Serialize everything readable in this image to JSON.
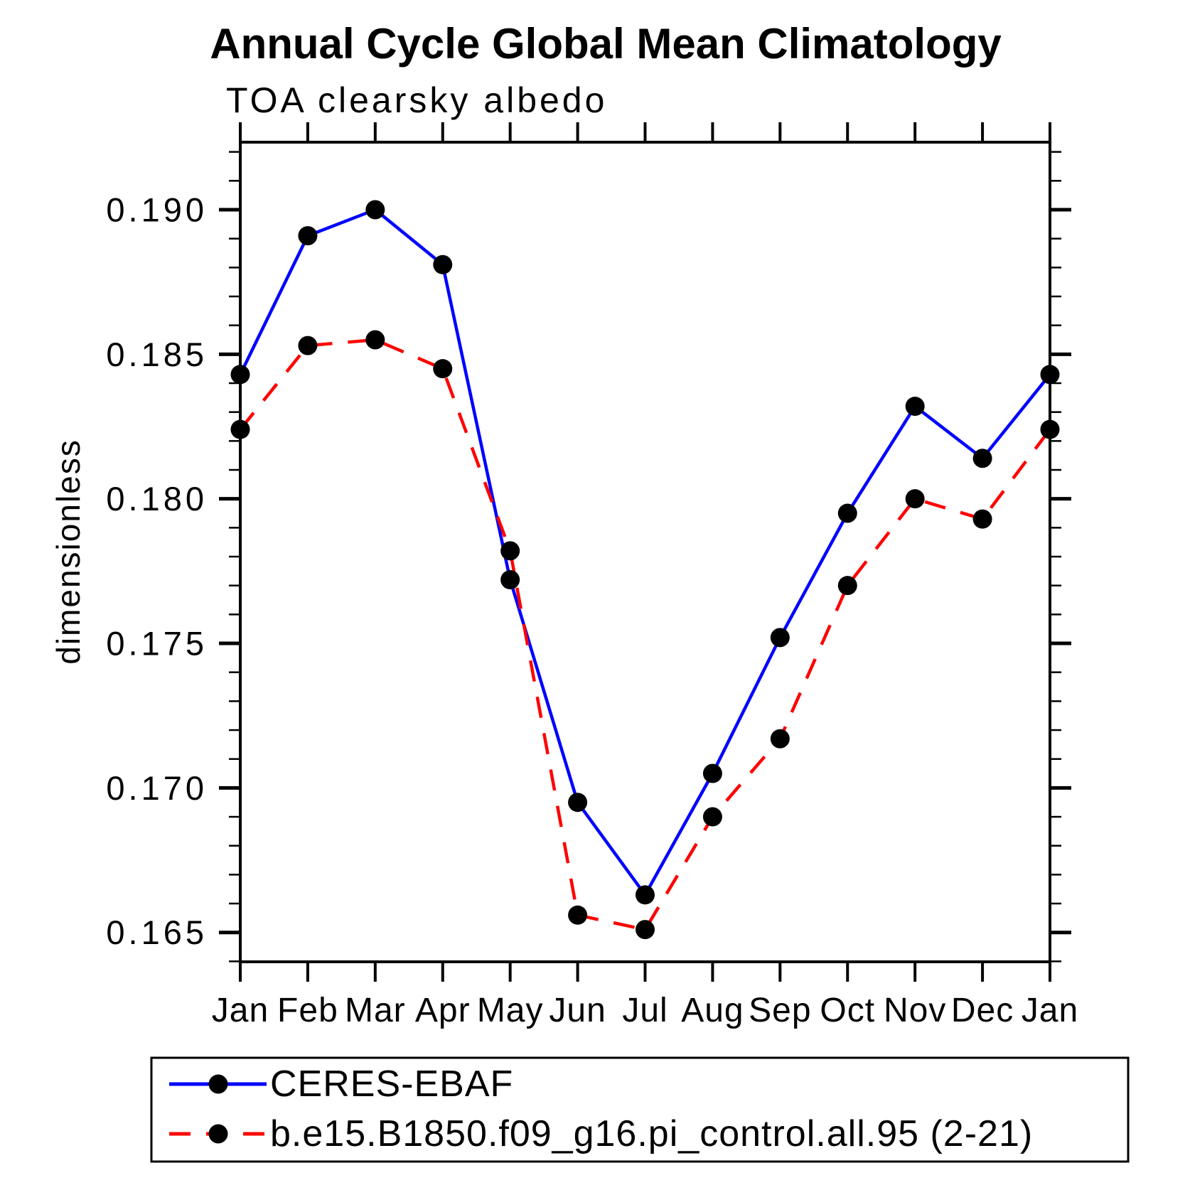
{
  "chart_data": {
    "type": "line",
    "title": "Annual Cycle Global Mean Climatology",
    "subtitle": "TOA clearsky albedo",
    "ylabel": "dimensionless",
    "categories": [
      "Jan",
      "Feb",
      "Mar",
      "Apr",
      "May",
      "Jun",
      "Jul",
      "Aug",
      "Sep",
      "Oct",
      "Nov",
      "Dec",
      "Jan"
    ],
    "ylim": [
      0.164,
      0.1923
    ],
    "yticks_major": [
      0.165,
      0.17,
      0.175,
      0.18,
      0.185,
      0.19
    ],
    "ytick_labels": [
      "0.165",
      "0.170",
      "0.175",
      "0.180",
      "0.185",
      "0.190"
    ],
    "y_minor_step": 0.001,
    "grid": false,
    "legend_position": "bottom",
    "series": [
      {
        "name": "CERES-EBAF",
        "color": "#0000ff",
        "style": "solid",
        "marker": "circle",
        "marker_color": "#000000",
        "values": [
          0.1843,
          0.1891,
          0.19,
          0.1881,
          0.1772,
          0.1695,
          0.1663,
          0.1705,
          0.1752,
          0.1795,
          0.1832,
          0.1814,
          0.1843
        ]
      },
      {
        "name": "b.e15.B1850.f09_g16.pi_control.all.95 (2-21)",
        "color": "#ff0000",
        "style": "dashed",
        "marker": "circle",
        "marker_color": "#000000",
        "values": [
          0.1824,
          0.1853,
          0.1855,
          0.1845,
          0.1782,
          0.1656,
          0.1651,
          0.169,
          0.1717,
          0.177,
          0.18,
          0.1793,
          0.1824
        ]
      }
    ]
  }
}
